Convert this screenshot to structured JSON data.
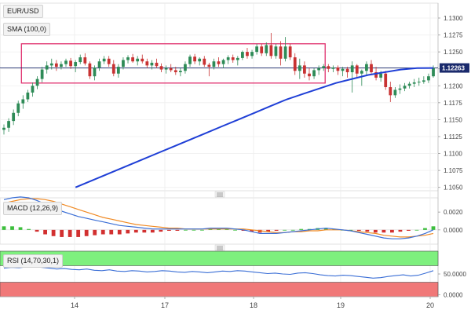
{
  "panel_labels": {
    "symbol": "EUR/USD",
    "sma": "SMA (100,0)",
    "macd": "MACD (12,26,9)",
    "rsi": "RSI (14,70,30,1)"
  },
  "price_tag": "1.12263",
  "colors": {
    "bull": "#2e8b57",
    "bear": "#c83232",
    "sma": "#1f3fd6",
    "range_box": "#e0306e",
    "price_line": "#1a2a6c",
    "price_tag_bg": "#1a2a6c",
    "macd_line": "#3b6fd6",
    "signal_line": "#f08a24",
    "rsi_line": "#3b6fd6",
    "overbought_zone": "#7ef07e",
    "oversold_zone": "#f07878"
  },
  "icons": [
    "collapse-handle-icon",
    "collapse-handle-icon"
  ],
  "chart_data": [
    {
      "type": "candlestick",
      "title": "EUR/USD",
      "x_tick_labels": [
        "14",
        "17",
        "18",
        "19",
        "20"
      ],
      "y_tick_labels": [
        "1.1300",
        "1.1275",
        "1.1250",
        "1.1225",
        "1.1200",
        "1.1175",
        "1.1150",
        "1.1125",
        "1.1100",
        "1.1075",
        "1.1050"
      ],
      "ylim": [
        1.1045,
        1.1322
      ],
      "last_price": 1.12263,
      "candles": [
        [
          1.1135,
          1.1143,
          1.1128,
          1.1138
        ],
        [
          1.1138,
          1.1152,
          1.1132,
          1.1148
        ],
        [
          1.1148,
          1.1165,
          1.1142,
          1.116
        ],
        [
          1.116,
          1.1178,
          1.1155,
          1.1174
        ],
        [
          1.1174,
          1.1186,
          1.1166,
          1.118
        ],
        [
          1.118,
          1.1194,
          1.1176,
          1.119
        ],
        [
          1.119,
          1.1205,
          1.1184,
          1.12
        ],
        [
          1.12,
          1.1214,
          1.1195,
          1.121
        ],
        [
          1.121,
          1.1228,
          1.1205,
          1.1224
        ],
        [
          1.1224,
          1.1236,
          1.1218,
          1.123
        ],
        [
          1.123,
          1.124,
          1.1224,
          1.1233
        ],
        [
          1.1233,
          1.1238,
          1.1222,
          1.1228
        ],
        [
          1.1228,
          1.1236,
          1.1224,
          1.1232
        ],
        [
          1.1232,
          1.124,
          1.1228,
          1.1237
        ],
        [
          1.1237,
          1.1241,
          1.1225,
          1.1229
        ],
        [
          1.1229,
          1.1238,
          1.122,
          1.1235
        ],
        [
          1.1235,
          1.1246,
          1.1232,
          1.1242
        ],
        [
          1.1242,
          1.1248,
          1.123,
          1.1233
        ],
        [
          1.1233,
          1.1236,
          1.121,
          1.1214
        ],
        [
          1.1214,
          1.123,
          1.1208,
          1.1227
        ],
        [
          1.1227,
          1.124,
          1.1222,
          1.1236
        ],
        [
          1.1236,
          1.1244,
          1.1232,
          1.124
        ],
        [
          1.124,
          1.1244,
          1.1228,
          1.1232
        ],
        [
          1.1232,
          1.1238,
          1.1214,
          1.1218
        ],
        [
          1.1218,
          1.1232,
          1.1212,
          1.1228
        ],
        [
          1.1228,
          1.1242,
          1.1224,
          1.1238
        ],
        [
          1.1238,
          1.1245,
          1.1233,
          1.1242
        ],
        [
          1.1242,
          1.1247,
          1.1234,
          1.1236
        ],
        [
          1.1236,
          1.1244,
          1.123,
          1.124
        ],
        [
          1.124,
          1.1246,
          1.1233,
          1.1236
        ],
        [
          1.1236,
          1.124,
          1.1226,
          1.123
        ],
        [
          1.123,
          1.1238,
          1.1224,
          1.1234
        ],
        [
          1.1234,
          1.124,
          1.1226,
          1.1229
        ],
        [
          1.1229,
          1.1233,
          1.122,
          1.1224
        ],
        [
          1.1224,
          1.123,
          1.1218,
          1.1226
        ],
        [
          1.1226,
          1.1232,
          1.122,
          1.1223
        ],
        [
          1.1223,
          1.1228,
          1.1216,
          1.122
        ],
        [
          1.122,
          1.1226,
          1.1214,
          1.1222
        ],
        [
          1.1222,
          1.1236,
          1.1218,
          1.1232
        ],
        [
          1.1232,
          1.1246,
          1.1228,
          1.1243
        ],
        [
          1.1243,
          1.1247,
          1.1232,
          1.1236
        ],
        [
          1.1236,
          1.1242,
          1.123,
          1.124
        ],
        [
          1.124,
          1.1244,
          1.1228,
          1.1231
        ],
        [
          1.1231,
          1.1234,
          1.1214,
          1.1228
        ],
        [
          1.1228,
          1.124,
          1.1224,
          1.1236
        ],
        [
          1.1236,
          1.1242,
          1.1228,
          1.1232
        ],
        [
          1.1232,
          1.124,
          1.1226,
          1.1238
        ],
        [
          1.1238,
          1.1245,
          1.1232,
          1.1242
        ],
        [
          1.1242,
          1.1246,
          1.1234,
          1.1238
        ],
        [
          1.1238,
          1.1244,
          1.123,
          1.1241
        ],
        [
          1.1241,
          1.1252,
          1.1238,
          1.125
        ],
        [
          1.125,
          1.1256,
          1.124,
          1.1244
        ],
        [
          1.1244,
          1.1253,
          1.124,
          1.125
        ],
        [
          1.125,
          1.1262,
          1.1246,
          1.1258
        ],
        [
          1.1258,
          1.1262,
          1.1244,
          1.1248
        ],
        [
          1.1248,
          1.1264,
          1.1244,
          1.126
        ],
        [
          1.126,
          1.1278,
          1.124,
          1.1244
        ],
        [
          1.1244,
          1.1262,
          1.124,
          1.1258
        ],
        [
          1.1258,
          1.1266,
          1.123,
          1.124
        ],
        [
          1.124,
          1.1272,
          1.1236,
          1.1258
        ],
        [
          1.1258,
          1.1262,
          1.1238,
          1.1242
        ],
        [
          1.1242,
          1.1248,
          1.1216,
          1.1222
        ],
        [
          1.1222,
          1.124,
          1.121,
          1.123
        ],
        [
          1.123,
          1.1236,
          1.1212,
          1.1218
        ],
        [
          1.1218,
          1.1226,
          1.1208,
          1.1214
        ],
        [
          1.1214,
          1.1226,
          1.121,
          1.1223
        ],
        [
          1.1223,
          1.123,
          1.1216,
          1.1226
        ],
        [
          1.1226,
          1.1232,
          1.1222,
          1.1229
        ],
        [
          1.1229,
          1.1232,
          1.122,
          1.1225
        ],
        [
          1.1225,
          1.123,
          1.122,
          1.1227
        ],
        [
          1.1227,
          1.123,
          1.1216,
          1.1222
        ],
        [
          1.1222,
          1.1228,
          1.1214,
          1.1225
        ],
        [
          1.1225,
          1.1228,
          1.1212,
          1.122
        ],
        [
          1.122,
          1.1236,
          1.119,
          1.123
        ],
        [
          1.123,
          1.1232,
          1.1212,
          1.1218
        ],
        [
          1.1218,
          1.1224,
          1.12,
          1.1222
        ],
        [
          1.1222,
          1.1236,
          1.1216,
          1.1232
        ],
        [
          1.1232,
          1.1238,
          1.1218,
          1.122
        ],
        [
          1.122,
          1.1228,
          1.1208,
          1.1212
        ],
        [
          1.1212,
          1.1222,
          1.1206,
          1.1218
        ],
        [
          1.1218,
          1.1222,
          1.1194,
          1.1198
        ],
        [
          1.1198,
          1.1206,
          1.1176,
          1.1186
        ],
        [
          1.1186,
          1.1198,
          1.1182,
          1.1194
        ],
        [
          1.1194,
          1.1202,
          1.1188,
          1.1196
        ],
        [
          1.1196,
          1.1204,
          1.1192,
          1.12
        ],
        [
          1.12,
          1.1206,
          1.1196,
          1.1203
        ],
        [
          1.1203,
          1.121,
          1.1198,
          1.1205
        ],
        [
          1.1205,
          1.1212,
          1.12,
          1.1206
        ],
        [
          1.1206,
          1.1214,
          1.1203,
          1.1208
        ],
        [
          1.1208,
          1.1218,
          1.1204,
          1.1214
        ],
        [
          1.1214,
          1.123,
          1.1212,
          1.12263
        ]
      ],
      "sma_100": [
        1.105,
        1.106,
        1.107,
        1.108,
        1.109,
        1.11,
        1.111,
        1.112,
        1.113,
        1.114,
        1.115,
        1.116,
        1.117,
        1.118,
        1.1188,
        1.1196,
        1.1204,
        1.121,
        1.1216,
        1.122,
        1.1224,
        1.1226,
        1.12263
      ],
      "sma_100_start_index": 15,
      "range_box": {
        "x_start_index": 4,
        "x_end_index": 67,
        "top": 1.1262,
        "bottom": 1.1204
      }
    },
    {
      "type": "line",
      "title": "MACD (12,26,9)",
      "y_tick_labels": [
        "0.0020",
        "0.0000"
      ],
      "ylim": [
        -0.0016,
        0.0036
      ],
      "series": [
        {
          "name": "MACD",
          "values": [
            0.0034,
            0.0036,
            0.0037,
            0.0036,
            0.0033,
            0.0029,
            0.0025,
            0.0021,
            0.0018,
            0.0015,
            0.0013,
            0.0011,
            0.0009,
            0.0007,
            0.0005,
            0.0004,
            0.0003,
            0.0002,
            0.0001,
            0.0001,
            0.0001,
            0.0001,
            0.0001,
            0.0001,
            0.0001,
            0.0002,
            0.0002,
            0.0002,
            0.0001,
            0.0,
            -0.0002,
            -0.0004,
            -0.0004,
            -0.0004,
            -0.0003,
            -0.0002,
            -0.0001,
            0.0,
            0.0001,
            0.0002,
            0.0001,
            0.0,
            -0.0001,
            -0.0003,
            -0.0005,
            -0.0007,
            -0.0009,
            -0.001,
            -0.001,
            -0.0009,
            -0.0007,
            -0.0004,
            0.0
          ]
        },
        {
          "name": "Signal",
          "values": [
            0.003,
            0.0032,
            0.0034,
            0.0035,
            0.0035,
            0.0034,
            0.0032,
            0.0029,
            0.0026,
            0.0023,
            0.002,
            0.0017,
            0.0014,
            0.0012,
            0.001,
            0.0008,
            0.0006,
            0.0005,
            0.0004,
            0.0003,
            0.0002,
            0.0002,
            0.0001,
            0.0001,
            0.0001,
            0.0001,
            0.0001,
            0.0001,
            0.0001,
            0.0001,
            0.0,
            -0.0001,
            -0.0002,
            -0.0003,
            -0.0003,
            -0.0002,
            -0.0002,
            -0.0001,
            -0.0001,
            0.0,
            0.0,
            0.0,
            -0.0001,
            -0.0002,
            -0.0003,
            -0.0004,
            -0.0006,
            -0.0007,
            -0.0008,
            -0.0008,
            -0.0007,
            -0.0006,
            -0.0004
          ]
        },
        {
          "name": "Histogram",
          "values": [
            0.0004,
            0.0004,
            0.0003,
            0.0001,
            -0.0002,
            -0.0005,
            -0.0007,
            -0.0008,
            -0.0008,
            -0.0008,
            -0.0007,
            -0.0006,
            -0.0005,
            -0.0005,
            -0.0005,
            -0.0004,
            -0.0003,
            -0.0003,
            -0.0003,
            -0.0002,
            -0.0001,
            -0.0001,
            0.0,
            0.0,
            0.0,
            0.0001,
            0.0001,
            0.0001,
            0.0,
            -0.0001,
            -0.0002,
            -0.0003,
            -0.0002,
            -0.0001,
            0.0,
            0.0,
            0.0001,
            0.0001,
            0.0002,
            0.0002,
            0.0001,
            0.0,
            0.0,
            -0.0001,
            -0.0002,
            -0.0003,
            -0.0003,
            -0.0003,
            -0.0002,
            -0.0001,
            0.0,
            0.0002,
            0.0004
          ]
        }
      ]
    },
    {
      "type": "line",
      "title": "RSI (14,70,30,1)",
      "y_tick_labels": [
        "50.0000",
        "0.0000"
      ],
      "ylim": [
        -5,
        105
      ],
      "overbought": 70,
      "oversold": 30,
      "series": [
        {
          "name": "RSI",
          "values": [
            64,
            66,
            65,
            67,
            68,
            66,
            64,
            62,
            63,
            61,
            60,
            62,
            59,
            58,
            60,
            57,
            56,
            58,
            57,
            55,
            56,
            58,
            57,
            55,
            54,
            56,
            55,
            53,
            55,
            57,
            56,
            58,
            57,
            55,
            53,
            51,
            52,
            50,
            49,
            52,
            53,
            51,
            48,
            46,
            45,
            47,
            46,
            44,
            42,
            40,
            41,
            44,
            46,
            48,
            45,
            47,
            52,
            58
          ]
        }
      ]
    }
  ]
}
